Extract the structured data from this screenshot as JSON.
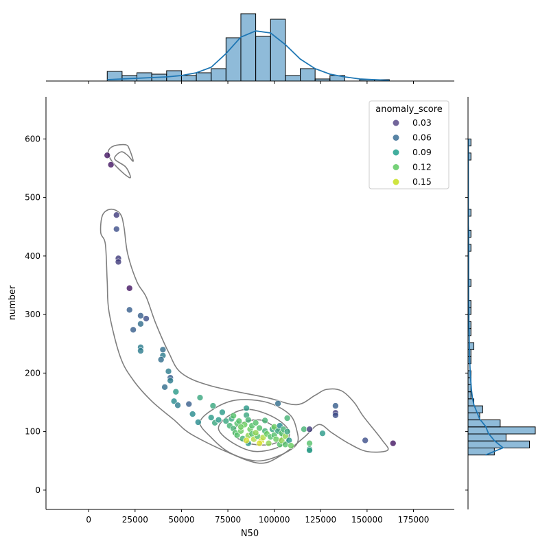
{
  "chart_data": {
    "type": "scatter",
    "subtype": "jointplot",
    "xlabel": "N50",
    "ylabel": "number",
    "xlim": [
      -23000,
      197000
    ],
    "ylim": [
      -33,
      672
    ],
    "x_ticks": [
      0,
      25000,
      50000,
      75000,
      100000,
      125000,
      150000,
      175000
    ],
    "x_tick_labels": [
      "0",
      "25000",
      "50000",
      "75000",
      "100000",
      "125000",
      "150000",
      "175000"
    ],
    "y_ticks": [
      0,
      100,
      200,
      300,
      400,
      500,
      600
    ],
    "y_tick_labels": [
      "0",
      "100",
      "200",
      "300",
      "400",
      "500",
      "600"
    ],
    "grid": false,
    "legend": {
      "title": "anomaly_score",
      "placement": "top-right",
      "entries": [
        {
          "label": "0.03",
          "color": "#5b4b8a"
        },
        {
          "label": "0.06",
          "color": "#3b6f95"
        },
        {
          "label": "0.09",
          "color": "#21a08d"
        },
        {
          "label": "0.12",
          "color": "#5ec962"
        },
        {
          "label": "0.15",
          "color": "#c7e020"
        }
      ]
    },
    "colormap": "viridis",
    "color_range": [
      0.0,
      0.17
    ],
    "points": [
      [
        10000,
        572,
        0.01
      ],
      [
        12000,
        556,
        0.01
      ],
      [
        15000,
        470,
        0.03
      ],
      [
        15000,
        446,
        0.04
      ],
      [
        16000,
        396,
        0.03
      ],
      [
        16000,
        390,
        0.03
      ],
      [
        22000,
        345,
        0.01
      ],
      [
        22000,
        308,
        0.05
      ],
      [
        24000,
        274,
        0.05
      ],
      [
        28000,
        298,
        0.05
      ],
      [
        28000,
        284,
        0.06
      ],
      [
        31000,
        293,
        0.04
      ],
      [
        28000,
        244,
        0.07
      ],
      [
        28000,
        238,
        0.07
      ],
      [
        40000,
        240,
        0.06
      ],
      [
        40000,
        230,
        0.07
      ],
      [
        39000,
        223,
        0.06
      ],
      [
        41000,
        176,
        0.06
      ],
      [
        43000,
        203,
        0.07
      ],
      [
        44000,
        192,
        0.05
      ],
      [
        44000,
        187,
        0.07
      ],
      [
        47000,
        168,
        0.09
      ],
      [
        46000,
        152,
        0.08
      ],
      [
        48000,
        145,
        0.07
      ],
      [
        54000,
        147,
        0.05
      ],
      [
        56000,
        130,
        0.08
      ],
      [
        59000,
        116,
        0.08
      ],
      [
        60000,
        158,
        0.1
      ],
      [
        66000,
        124,
        0.09
      ],
      [
        67000,
        144,
        0.1
      ],
      [
        68000,
        115,
        0.1
      ],
      [
        70000,
        120,
        0.09
      ],
      [
        72000,
        133,
        0.09
      ],
      [
        74000,
        118,
        0.1
      ],
      [
        76000,
        110,
        0.11
      ],
      [
        77000,
        122,
        0.1
      ],
      [
        78000,
        127,
        0.12
      ],
      [
        78000,
        105,
        0.11
      ],
      [
        79000,
        98,
        0.12
      ],
      [
        80000,
        114,
        0.12
      ],
      [
        80000,
        94,
        0.12
      ],
      [
        81000,
        118,
        0.12
      ],
      [
        82000,
        101,
        0.13
      ],
      [
        83000,
        88,
        0.11
      ],
      [
        84000,
        112,
        0.13
      ],
      [
        85000,
        128,
        0.1
      ],
      [
        85000,
        140,
        0.09
      ],
      [
        86000,
        120,
        0.11
      ],
      [
        86000,
        93,
        0.14
      ],
      [
        86000,
        80,
        0.09
      ],
      [
        87000,
        104,
        0.13
      ],
      [
        88000,
        110,
        0.12
      ],
      [
        88000,
        96,
        0.12
      ],
      [
        89000,
        87,
        0.15
      ],
      [
        90000,
        115,
        0.12
      ],
      [
        91000,
        92,
        0.12
      ],
      [
        92000,
        106,
        0.12
      ],
      [
        93000,
        84,
        0.16
      ],
      [
        94000,
        90,
        0.15
      ],
      [
        95000,
        119,
        0.11
      ],
      [
        95000,
        101,
        0.11
      ],
      [
        96000,
        96,
        0.13
      ],
      [
        97000,
        80,
        0.14
      ],
      [
        98000,
        91,
        0.12
      ],
      [
        99000,
        104,
        0.1
      ],
      [
        100000,
        108,
        0.13
      ],
      [
        100000,
        94,
        0.12
      ],
      [
        101000,
        87,
        0.13
      ],
      [
        102000,
        148,
        0.06
      ],
      [
        102000,
        101,
        0.1
      ],
      [
        103000,
        78,
        0.12
      ],
      [
        103000,
        110,
        0.08
      ],
      [
        104000,
        97,
        0.12
      ],
      [
        104000,
        85,
        0.14
      ],
      [
        105000,
        104,
        0.11
      ],
      [
        106000,
        92,
        0.14
      ],
      [
        106000,
        78,
        0.12
      ],
      [
        107000,
        123,
        0.11
      ],
      [
        107000,
        100,
        0.1
      ],
      [
        108000,
        85,
        0.09
      ],
      [
        109000,
        76,
        0.13
      ],
      [
        116000,
        104,
        0.11
      ],
      [
        119000,
        104,
        0.03
      ],
      [
        119000,
        80,
        0.12
      ],
      [
        119000,
        70,
        0.1
      ],
      [
        119000,
        68,
        0.09
      ],
      [
        126000,
        97,
        0.09
      ],
      [
        133000,
        144,
        0.05
      ],
      [
        133000,
        132,
        0.03
      ],
      [
        133000,
        128,
        0.04
      ],
      [
        149000,
        85,
        0.04
      ],
      [
        164000,
        80,
        0.01
      ],
      [
        85000,
        85,
        0.16
      ],
      [
        92000,
        80,
        0.16
      ],
      [
        90000,
        98,
        0.14
      ],
      [
        82000,
        108,
        0.13
      ]
    ],
    "kde_levels": [
      [
        [
          20000,
          590
        ],
        [
          13500,
          588
        ],
        [
          10500,
          578
        ],
        [
          12500,
          562
        ],
        [
          18500,
          542
        ],
        [
          22500,
          534
        ],
        [
          20000,
          552
        ],
        [
          14000,
          566
        ],
        [
          17500,
          578
        ],
        [
          21000,
          572
        ],
        [
          24000,
          562
        ],
        [
          22000,
          582
        ],
        [
          20000,
          590
        ]
      ],
      [
        [
          12000,
          480
        ],
        [
          17000,
          472
        ],
        [
          19000,
          450
        ],
        [
          21000,
          404
        ],
        [
          26000,
          356
        ],
        [
          31000,
          330
        ],
        [
          36000,
          286
        ],
        [
          43000,
          236
        ],
        [
          50000,
          200
        ],
        [
          66000,
          178
        ],
        [
          96000,
          158
        ],
        [
          112000,
          146
        ],
        [
          122000,
          162
        ],
        [
          128000,
          172
        ],
        [
          136000,
          170
        ],
        [
          143000,
          150
        ],
        [
          148000,
          126
        ],
        [
          158000,
          86
        ],
        [
          161000,
          68
        ],
        [
          150000,
          66
        ],
        [
          140000,
          80
        ],
        [
          131000,
          98
        ],
        [
          124000,
          112
        ],
        [
          116000,
          90
        ],
        [
          104000,
          60
        ],
        [
          92000,
          46
        ],
        [
          74000,
          66
        ],
        [
          55000,
          96
        ],
        [
          46000,
          120
        ],
        [
          34000,
          152
        ],
        [
          24000,
          188
        ],
        [
          17000,
          228
        ],
        [
          11000,
          304
        ],
        [
          10000,
          356
        ],
        [
          9000,
          420
        ],
        [
          6500,
          440
        ],
        [
          7500,
          470
        ],
        [
          12000,
          480
        ]
      ],
      [
        [
          68000,
          140
        ],
        [
          80000,
          154
        ],
        [
          96000,
          150
        ],
        [
          108000,
          130
        ],
        [
          112000,
          104
        ],
        [
          112000,
          78
        ],
        [
          102000,
          58
        ],
        [
          90000,
          50
        ],
        [
          76000,
          64
        ],
        [
          66000,
          90
        ],
        [
          60000,
          116
        ],
        [
          68000,
          140
        ]
      ],
      [
        [
          75000,
          126
        ],
        [
          86000,
          138
        ],
        [
          100000,
          124
        ],
        [
          108000,
          100
        ],
        [
          104000,
          76
        ],
        [
          90000,
          66
        ],
        [
          78000,
          80
        ],
        [
          70000,
          104
        ],
        [
          75000,
          126
        ]
      ],
      [
        [
          82000,
          114
        ],
        [
          92000,
          120
        ],
        [
          100000,
          108
        ],
        [
          104000,
          90
        ],
        [
          98000,
          78
        ],
        [
          86000,
          80
        ],
        [
          78000,
          96
        ],
        [
          82000,
          114
        ]
      ]
    ],
    "marginal_x_hist": {
      "bins": [
        10000,
        18000,
        26000,
        34000,
        42000,
        50000,
        58000,
        66000,
        74000,
        82000,
        90000,
        98000,
        106000,
        114000,
        122000,
        130000,
        138000,
        146000,
        154000,
        162000
      ],
      "counts": [
        1.4,
        0.8,
        1.2,
        1.0,
        1.5,
        0.8,
        1.2,
        1.8,
        6.3,
        9.8,
        6.5,
        9.0,
        0.8,
        1.8,
        0.3,
        0.8,
        0.0,
        0.2,
        0.2
      ],
      "kde_y": [
        0.2,
        0.3,
        0.4,
        0.5,
        0.6,
        0.8,
        1.2,
        2.0,
        4.0,
        6.4,
        7.3,
        7.0,
        5.3,
        3.2,
        1.8,
        1.0,
        0.6,
        0.3,
        0.2,
        0.1
      ]
    },
    "marginal_y_hist": {
      "bins": [
        60,
        72,
        84,
        96,
        108,
        120,
        132,
        144,
        156,
        168,
        180,
        192,
        204,
        216,
        228,
        240,
        252,
        264,
        276,
        288,
        300,
        312,
        324,
        336,
        348,
        360,
        372,
        384,
        396,
        408,
        420,
        432,
        444,
        456,
        468,
        480,
        492,
        504,
        516,
        528,
        540,
        552,
        564,
        576,
        588,
        600
      ],
      "counts": [
        9,
        21,
        13,
        23,
        11,
        4,
        5,
        2,
        1,
        1,
        1,
        1,
        0,
        1,
        1,
        2,
        0,
        1,
        1,
        0,
        1,
        1,
        0,
        0,
        1,
        0,
        0,
        0,
        0,
        1,
        0,
        1,
        0,
        0,
        1,
        0,
        0,
        0,
        0,
        0,
        0,
        0,
        1,
        0,
        1
      ],
      "kde_x": [
        6,
        12,
        9,
        7,
        6,
        4,
        3,
        2,
        1.5,
        1.2,
        1,
        0.8,
        0.7,
        0.6,
        0.5,
        0.5,
        0.4,
        0.4,
        0.3,
        0.3,
        0.3,
        0.2,
        0.2,
        0.2,
        0.2,
        0.2,
        0.2,
        0.2,
        0.2,
        0.2,
        0.2,
        0.2,
        0.1,
        0.1,
        0.1,
        0.1,
        0.1,
        0.1,
        0.1,
        0.1,
        0.1,
        0.1,
        0.1,
        0.1,
        0.1
      ]
    }
  }
}
